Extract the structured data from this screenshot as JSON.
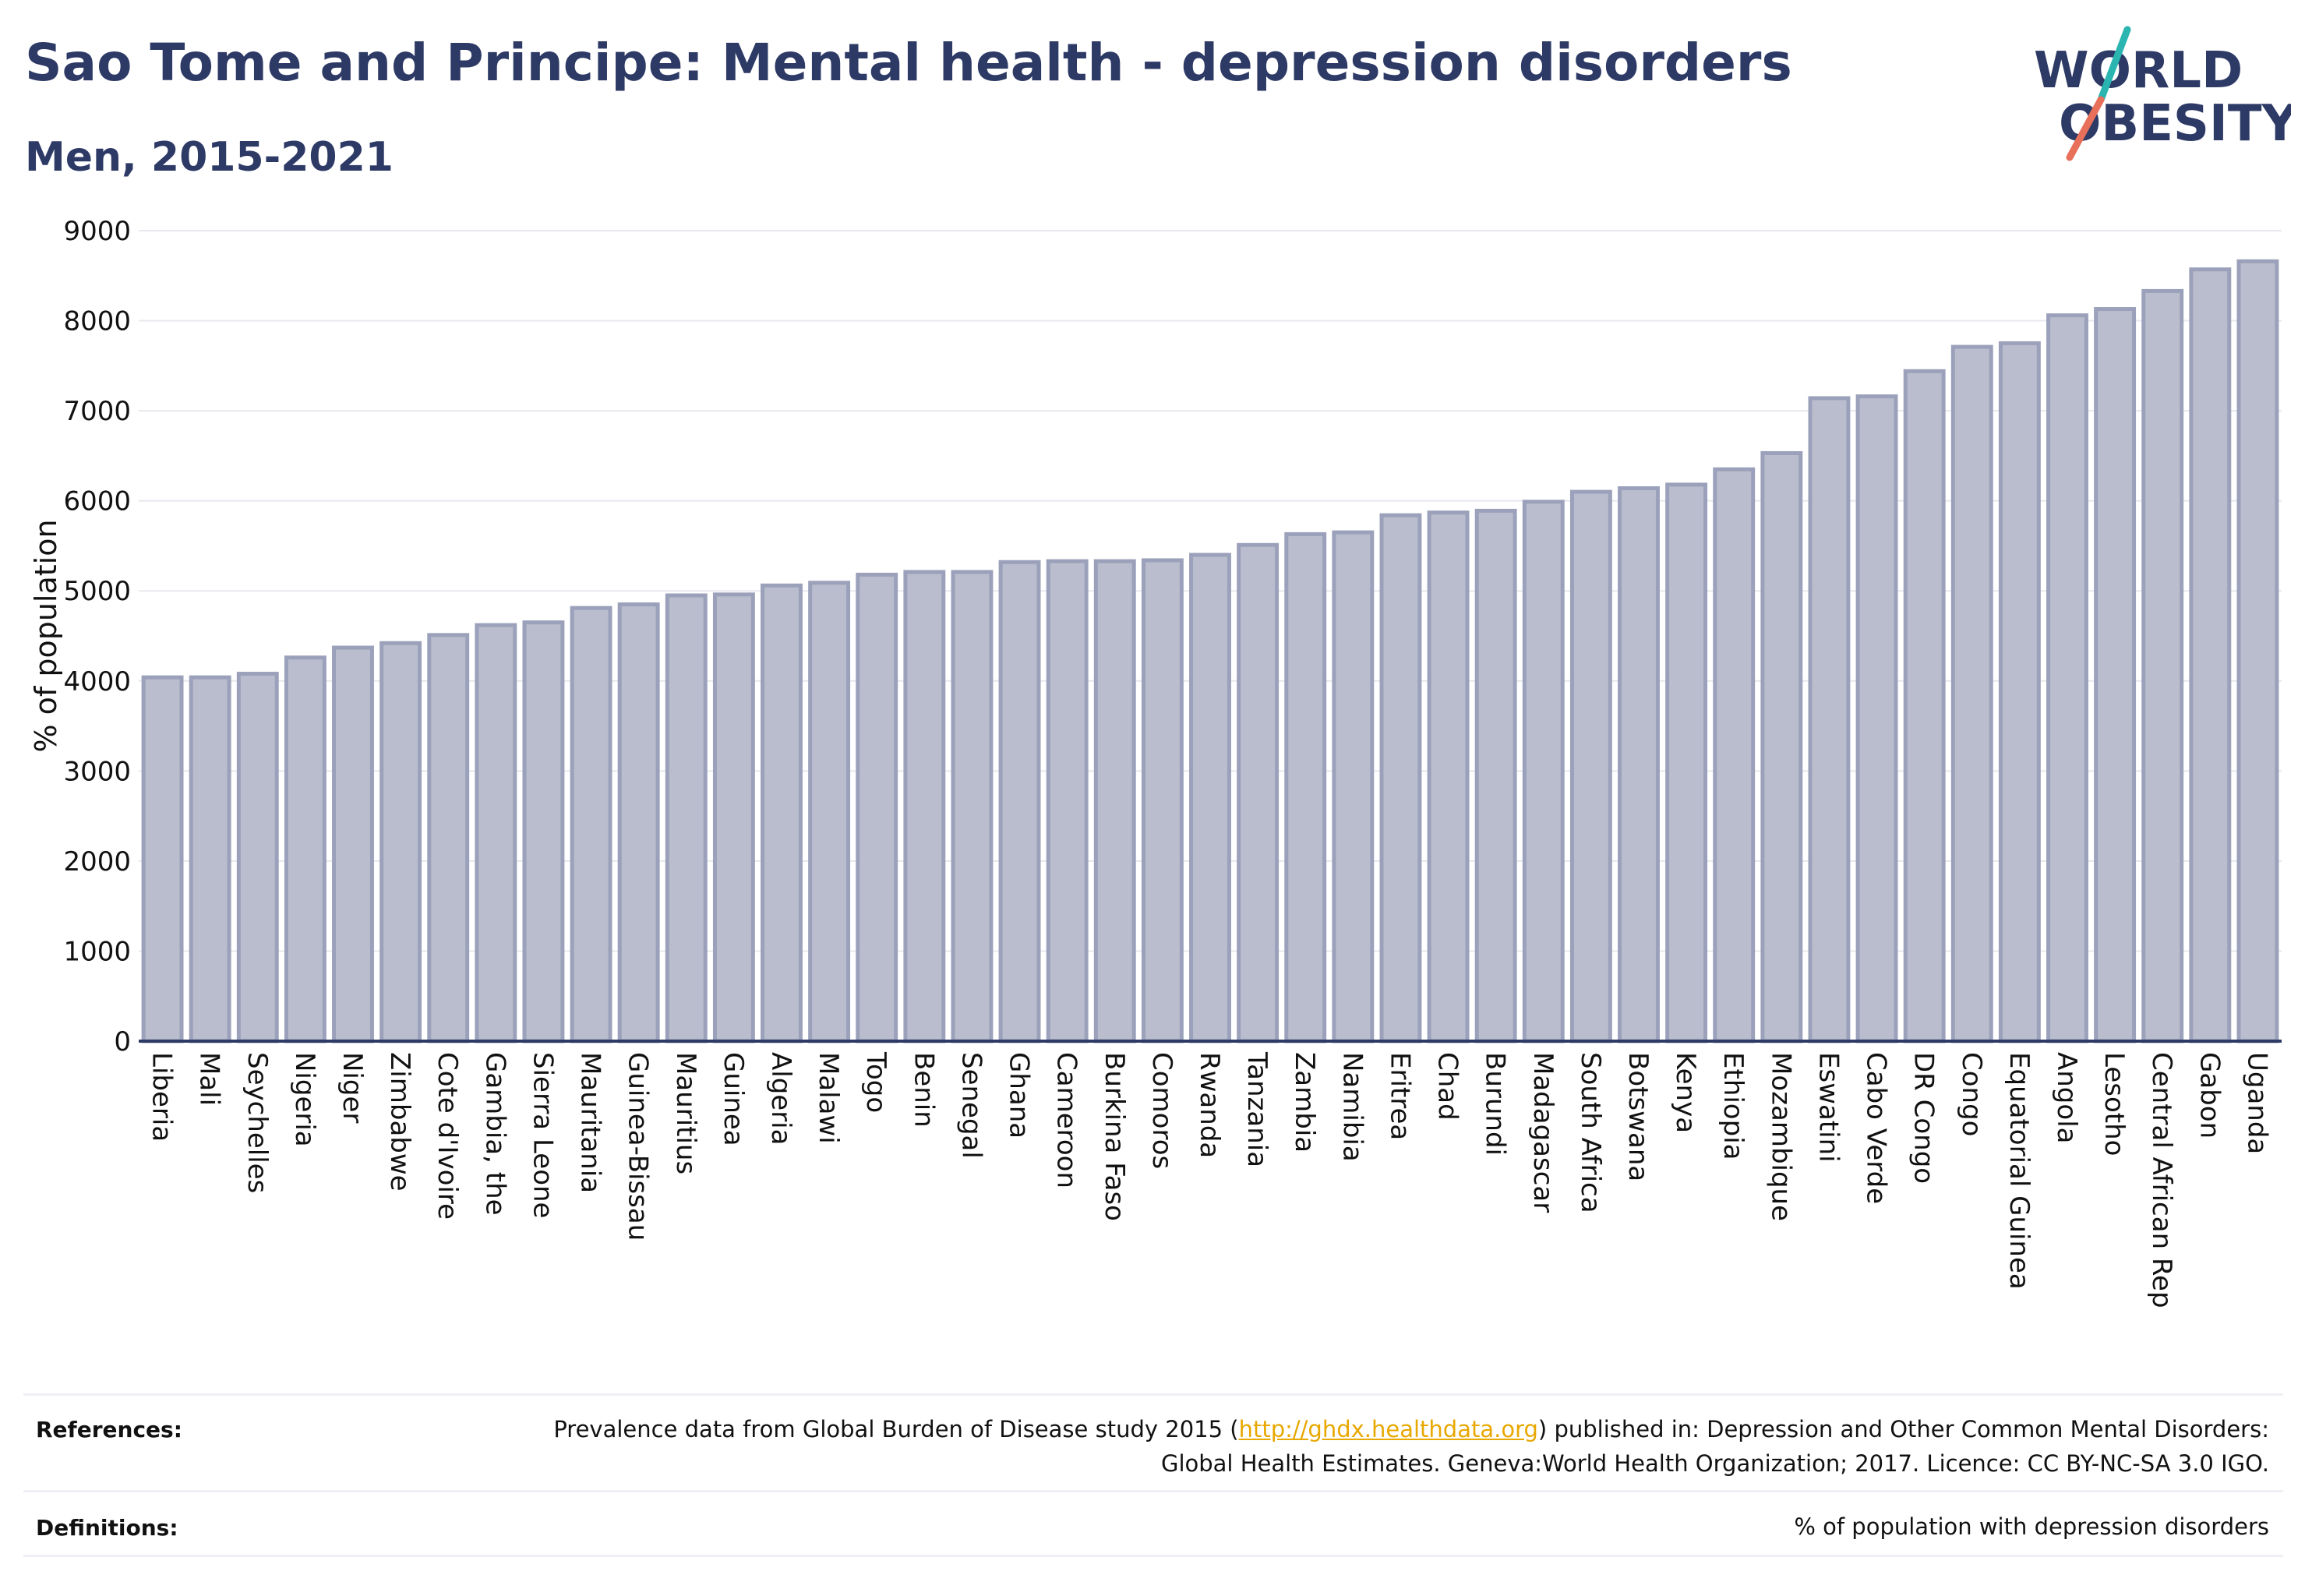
{
  "header": {
    "title": "Sao Tome and Principe: Mental health - depression disorders",
    "subtitle": "Men, 2015-2021"
  },
  "logo": {
    "line1": "WORLD",
    "line2": "OBESITY",
    "colors": {
      "text": "#2e3a66",
      "slash_top": "#2bb5b0",
      "slash_bottom": "#e8705a"
    }
  },
  "chart_data": {
    "type": "bar",
    "ylabel": "% of population",
    "ylim": [
      0,
      9000
    ],
    "yticks": [
      0,
      1000,
      2000,
      3000,
      4000,
      5000,
      6000,
      7000,
      8000,
      9000
    ],
    "grid": true,
    "bar_color": "#b9bdcd",
    "bar_edge_color": "#9ba1ba",
    "categories": [
      "Liberia",
      "Mali",
      "Seychelles",
      "Nigeria",
      "Niger",
      "Zimbabwe",
      "Cote d'Ivoire",
      "Gambia, the",
      "Sierra Leone",
      "Mauritania",
      "Guinea-Bissau",
      "Mauritius",
      "Guinea",
      "Algeria",
      "Malawi",
      "Togo",
      "Benin",
      "Senegal",
      "Ghana",
      "Cameroon",
      "Burkina Faso",
      "Comoros",
      "Rwanda",
      "Tanzania",
      "Zambia",
      "Namibia",
      "Eritrea",
      "Chad",
      "Burundi",
      "Madagascar",
      "South Africa",
      "Botswana",
      "Kenya",
      "Ethiopia",
      "Mozambique",
      "Eswatini",
      "Cabo Verde",
      "DR Congo",
      "Congo",
      "Equatorial Guinea",
      "Angola",
      "Lesotho",
      "Central African Rep",
      "Gabon",
      "Uganda"
    ],
    "values": [
      4040,
      4040,
      4080,
      4260,
      4370,
      4420,
      4510,
      4620,
      4650,
      4810,
      4850,
      4950,
      4960,
      5060,
      5090,
      5180,
      5210,
      5210,
      5320,
      5330,
      5330,
      5340,
      5400,
      5510,
      5630,
      5650,
      5840,
      5870,
      5890,
      5990,
      6100,
      6140,
      6180,
      6350,
      6530,
      7140,
      7160,
      7440,
      7710,
      7750,
      8060,
      8130,
      8330,
      8570,
      8660
    ]
  },
  "footer": {
    "references_label": "References:",
    "references_pre": "Prevalence data from Global Burden of Disease study 2015 (",
    "references_link": "http://ghdx.healthdata.org",
    "references_post": ") published in: Depression and Other Common Mental Disorders: Global Health Estimates. Geneva:World Health Organization; 2017. Licence: CC BY-NC-SA 3.0 IGO.",
    "definitions_label": "Definitions:",
    "definitions_text": "% of population with depression disorders"
  }
}
